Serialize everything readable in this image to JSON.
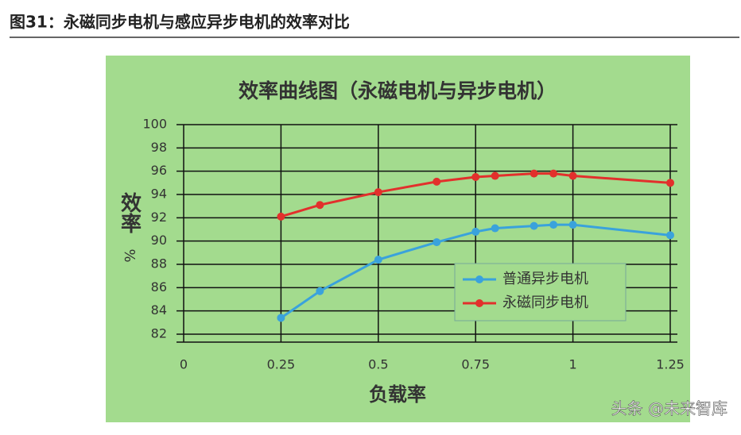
{
  "header": {
    "title": "图31：永磁同步电机与感应异步电机的效率对比"
  },
  "watermark": "头条 @未来智库",
  "chart_data": {
    "type": "line",
    "title": "效率曲线图（永磁电机与异步电机）",
    "xlabel": "负载率",
    "ylabel": "效率",
    "yunit": "%",
    "x": [
      0.25,
      0.35,
      0.5,
      0.65,
      0.75,
      0.8,
      0.9,
      0.95,
      1.0,
      1.25
    ],
    "series": [
      {
        "name": "普通异步电机",
        "color": "#3aa2dc",
        "values": [
          83.4,
          85.7,
          88.4,
          89.9,
          90.8,
          91.1,
          91.3,
          91.4,
          91.4,
          90.5
        ]
      },
      {
        "name": "永磁同步电机",
        "color": "#e2302c",
        "values": [
          92.1,
          93.1,
          94.2,
          95.1,
          95.5,
          95.6,
          95.8,
          95.8,
          95.6,
          95.0
        ]
      }
    ],
    "xlim": [
      0,
      1.25
    ],
    "xticks": [
      0,
      0.25,
      0.5,
      0.75,
      1,
      1.25
    ],
    "ylim": [
      82,
      100
    ],
    "yticks": [
      82,
      84,
      86,
      88,
      90,
      92,
      94,
      96,
      98,
      100
    ],
    "grid": true,
    "legend": "right"
  }
}
